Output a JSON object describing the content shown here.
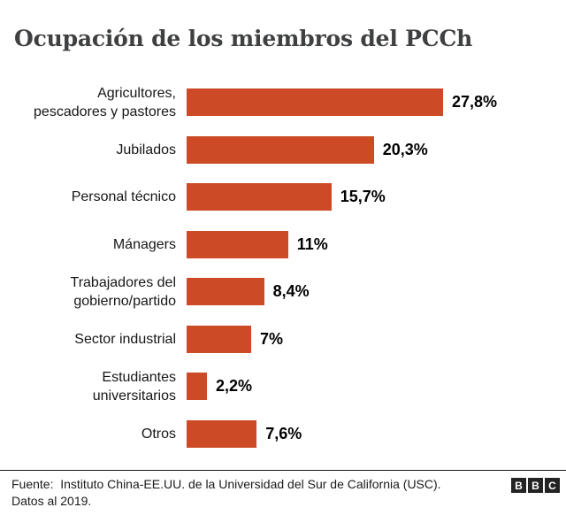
{
  "title": "Ocupación de los miembros del PCCh",
  "chart_data": {
    "type": "bar",
    "orientation": "horizontal",
    "title": "Ocupación de los miembros del PCCh",
    "categories": [
      "Agricultores, pescadores y pastores",
      "Jubilados",
      "Personal técnico",
      "Mánagers",
      "Trabajadores del gobierno/partido",
      "Sector industrial",
      "Estudiantes universitarios",
      "Otros"
    ],
    "category_lines": [
      [
        "Agricultores,",
        "pescadores y pastores"
      ],
      [
        "Jubilados"
      ],
      [
        "Personal técnico"
      ],
      [
        "Mánagers"
      ],
      [
        "Trabajadores del",
        "gobierno/partido"
      ],
      [
        "Sector industrial"
      ],
      [
        "Estudiantes",
        "universitarios"
      ],
      [
        "Otros"
      ]
    ],
    "values": [
      27.8,
      20.3,
      15.7,
      11,
      8.4,
      7,
      2.2,
      7.6
    ],
    "value_labels": [
      "27,8%",
      "20,3%",
      "15,7%",
      "11%",
      "8,4%",
      "7%",
      "2,2%",
      "7,6%"
    ],
    "unit": "%",
    "xlim": [
      0,
      30
    ],
    "grid": false,
    "legend": false,
    "bar_color": "#cc4a26",
    "label_color": "#161616",
    "value_color": "#000000",
    "title_color": "#3e4042"
  },
  "footer": {
    "source_line1": "Fuente:  Instituto China-EE.UU. de la Universidad del Sur de California (USC).",
    "source_line2": "Datos al 2019.",
    "logo_letters": [
      "B",
      "B",
      "C"
    ]
  }
}
